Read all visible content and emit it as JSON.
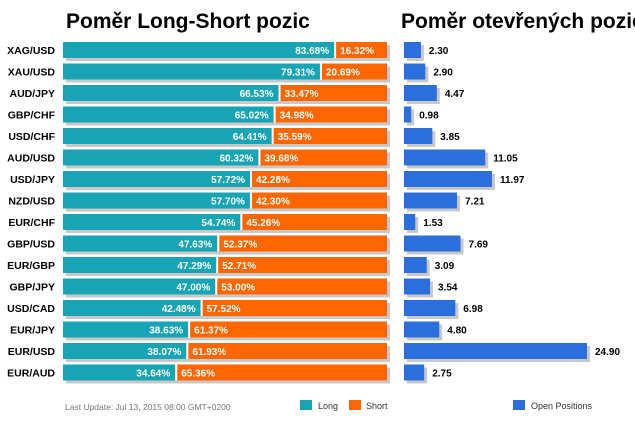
{
  "titles": {
    "left": "Poměr Long-Short pozic",
    "right": "Poměr otevřených pozic"
  },
  "footer": {
    "last_update": "Last Update: Jul 13, 2015 08:00 GMT+0200"
  },
  "colors": {
    "long": "#17a5b5",
    "short": "#ff6600",
    "open_positions": "#2a6fdb",
    "shadow": "#c8c8c8"
  },
  "chart_data": [
    {
      "type": "bar",
      "orientation": "horizontal",
      "stacked": true,
      "title": "Poměr Long-Short pozic",
      "categories": [
        "XAG/USD",
        "XAU/USD",
        "AUD/JPY",
        "GBP/CHF",
        "USD/CHF",
        "AUD/USD",
        "USD/JPY",
        "NZD/USD",
        "EUR/CHF",
        "GBP/USD",
        "EUR/GBP",
        "GBP/JPY",
        "USD/CAD",
        "EUR/JPY",
        "EUR/USD",
        "EUR/AUD"
      ],
      "series": [
        {
          "name": "Long",
          "values": [
            83.68,
            79.31,
            66.53,
            65.02,
            64.41,
            60.32,
            57.72,
            57.7,
            54.74,
            47.63,
            47.29,
            47.0,
            42.48,
            38.63,
            38.07,
            34.64
          ],
          "labels": [
            "83.68%",
            "79.31%",
            "66.53%",
            "65.02%",
            "64.41%",
            "60.32%",
            "57.72%",
            "57.70%",
            "54.74%",
            "47.63%",
            "47.29%",
            "47.00%",
            "42.48%",
            "38.63%",
            "38.07%",
            "34.64%"
          ]
        },
        {
          "name": "Short",
          "values": [
            16.32,
            20.69,
            33.47,
            34.98,
            35.59,
            39.68,
            42.28,
            42.3,
            45.26,
            52.37,
            52.71,
            53.0,
            57.52,
            61.37,
            61.93,
            65.36
          ],
          "labels": [
            "16.32%",
            "20.69%",
            "33.47%",
            "34.98%",
            "35.59%",
            "39.68%",
            "42.28%",
            "42.30%",
            "45.26%",
            "52.37%",
            "52.71%",
            "53.00%",
            "57.52%",
            "61.37%",
            "61.93%",
            "65.36%"
          ]
        }
      ],
      "xlim": [
        0,
        100
      ],
      "legend": "bottom"
    },
    {
      "type": "bar",
      "orientation": "horizontal",
      "title": "Poměr otevřených pozic",
      "categories": [
        "XAG/USD",
        "XAU/USD",
        "AUD/JPY",
        "GBP/CHF",
        "USD/CHF",
        "AUD/USD",
        "USD/JPY",
        "NZD/USD",
        "EUR/CHF",
        "GBP/USD",
        "EUR/GBP",
        "GBP/JPY",
        "USD/CAD",
        "EUR/JPY",
        "EUR/USD",
        "EUR/AUD"
      ],
      "series": [
        {
          "name": "Open Positions",
          "values": [
            2.3,
            2.9,
            4.47,
            0.98,
            3.85,
            11.05,
            11.97,
            7.21,
            1.53,
            7.69,
            3.09,
            3.54,
            6.98,
            4.8,
            24.9,
            2.75
          ],
          "labels": [
            "2.30",
            "2.90",
            "4.47",
            "0.98",
            "3.85",
            "11.05",
            "11.97",
            "7.21",
            "1.53",
            "7.69",
            "3.09",
            "3.54",
            "6.98",
            "4.80",
            "24.90",
            "2.75"
          ]
        }
      ],
      "xlim": [
        0,
        24.9
      ],
      "legend": "bottom"
    }
  ]
}
